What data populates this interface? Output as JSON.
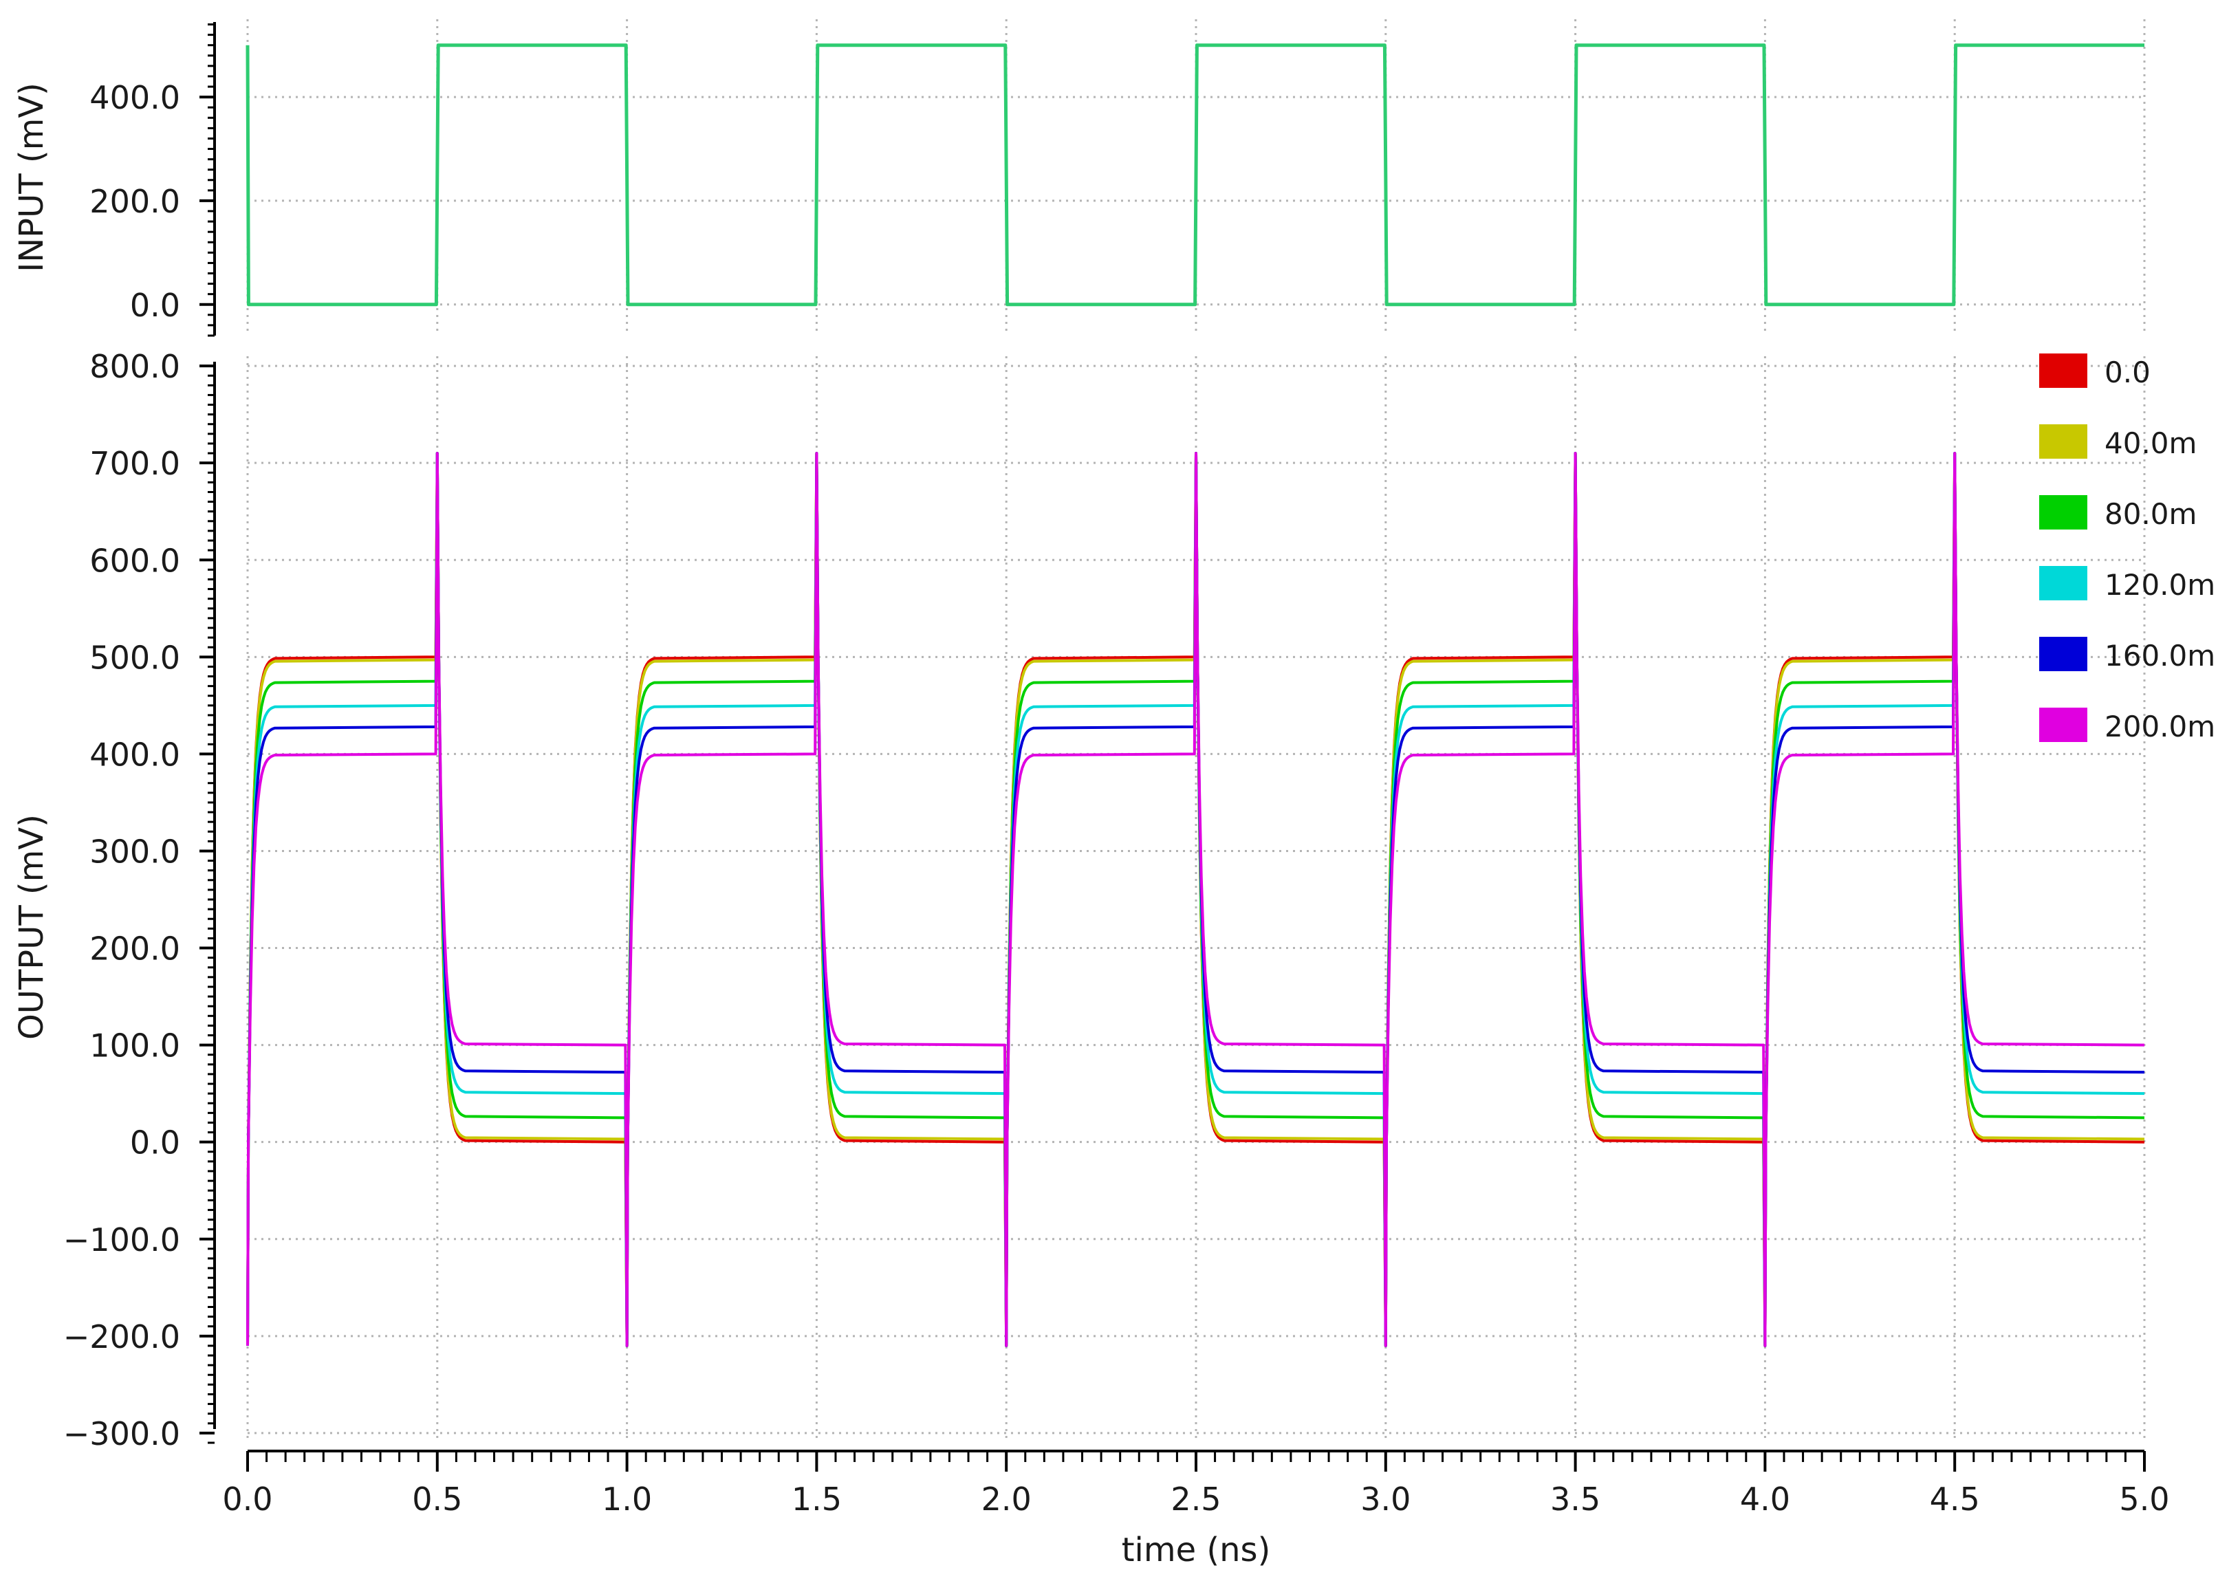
{
  "chart_data": [
    {
      "type": "line",
      "panel": "input",
      "ylabel": "INPUT (mV)",
      "xlabel": "",
      "xlim": [
        0,
        5
      ],
      "ylim": [
        -60,
        550
      ],
      "yticks": [
        0,
        200,
        400
      ],
      "ytick_labels": [
        "0.0",
        "200.0",
        "400.0"
      ],
      "grid": true,
      "legend": "none",
      "series": [
        {
          "color": "#2ecc71",
          "x": [
            0,
            0.0025,
            0.4975,
            0.5025,
            0.9975,
            1.0025,
            1.4975,
            1.5025,
            1.9975,
            2.0025,
            2.4975,
            2.5025,
            2.9975,
            3.0025,
            3.4975,
            3.5025,
            3.9975,
            4.0025,
            4.4975,
            4.5025,
            5.0
          ],
          "y": [
            500,
            0,
            0,
            500,
            500,
            0,
            0,
            500,
            500,
            0,
            0,
            500,
            500,
            0,
            0,
            500,
            500,
            0,
            0,
            500,
            500
          ]
        }
      ]
    },
    {
      "type": "line",
      "panel": "output",
      "ylabel": "OUTPUT (mV)",
      "xlabel": "time (ns)",
      "xlim": [
        0,
        5
      ],
      "ylim": [
        -310,
        810
      ],
      "xticks": [
        0,
        0.5,
        1,
        1.5,
        2,
        2.5,
        3,
        3.5,
        4,
        4.5,
        5
      ],
      "xtick_labels": [
        "0.0",
        "0.5",
        "1.0",
        "1.5",
        "2.0",
        "2.5",
        "3.0",
        "3.5",
        "4.0",
        "4.5",
        "5.0"
      ],
      "yticks": [
        -300,
        -200,
        -100,
        0,
        100,
        200,
        300,
        400,
        500,
        600,
        700,
        800
      ],
      "ytick_labels": [
        "−300.0",
        "−200.0",
        "−100.0",
        "0.0",
        "100.0",
        "200.0",
        "300.0",
        "400.0",
        "500.0",
        "600.0",
        "700.0",
        "800.0"
      ],
      "grid": true,
      "legend": "right",
      "overshoot_peak": 710,
      "undershoot_trough": -210,
      "series": [
        {
          "name": "0.0",
          "color": "#e00000",
          "high": 500,
          "low": 0
        },
        {
          "name": "40.0m",
          "color": "#c8c800",
          "high": 497,
          "low": 3
        },
        {
          "name": "80.0m",
          "color": "#00d000",
          "high": 475,
          "low": 25
        },
        {
          "name": "120.0m",
          "color": "#00d8d8",
          "high": 450,
          "low": 50
        },
        {
          "name": "160.0m",
          "color": "#0000d8",
          "high": 428,
          "low": 72
        },
        {
          "name": "200.0m",
          "color": "#e000e0",
          "high": 400,
          "low": 100
        }
      ]
    }
  ]
}
